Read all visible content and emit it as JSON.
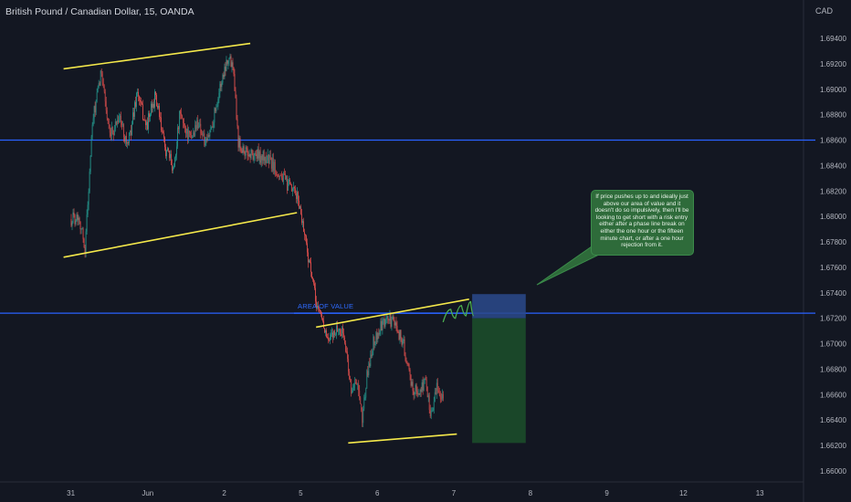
{
  "header": {
    "symbol_title": "British Pound / Canadian Dollar, 15, OANDA",
    "currency": "CAD"
  },
  "colors": {
    "background": "#131722",
    "up_candle": "#26a69a",
    "down_candle": "#ef5350",
    "trendline": "#f5e94b",
    "horizontal_level": "#2962ff",
    "risk_zone": "#2b4a8c",
    "reward_zone": "#1c4d2a",
    "projection_path": "#4caf50",
    "callout_fill": "#2e6b3a"
  },
  "annotations": {
    "area_of_value_label": "AREA OF VALUE",
    "callout_text": "If price pushes up to and ideally just above our area of value and it doesn't do so impulsively, then I'll be looking to get short with a risk entry either after a phase line break on either the one hour or the fifteen minute chart, or after a one hour rejection from it."
  },
  "chart_data": {
    "type": "candlestick",
    "title": "British Pound / Canadian Dollar, 15, OANDA",
    "y_axis_label": "CAD",
    "ylim": [
      1.6594,
      1.6952
    ],
    "y_ticks": [
      "1.69400",
      "1.69200",
      "1.69000",
      "1.68800",
      "1.68600",
      "1.68400",
      "1.68200",
      "1.68000",
      "1.67800",
      "1.67600",
      "1.67400",
      "1.67200",
      "1.67000",
      "1.66800",
      "1.66600",
      "1.66400",
      "1.66200",
      "1.66000"
    ],
    "x_ticks": [
      "31",
      "Jun",
      "2",
      "5",
      "6",
      "7",
      "8",
      "9",
      "12",
      "13"
    ],
    "grid": false,
    "price_path": [
      {
        "x": 0.0,
        "p": 1.6798
      },
      {
        "x": 0.1,
        "p": 1.6801
      },
      {
        "x": 0.18,
        "p": 1.6775
      },
      {
        "x": 0.28,
        "p": 1.6875
      },
      {
        "x": 0.4,
        "p": 1.6915
      },
      {
        "x": 0.5,
        "p": 1.686
      },
      {
        "x": 0.62,
        "p": 1.688
      },
      {
        "x": 0.74,
        "p": 1.6855
      },
      {
        "x": 0.86,
        "p": 1.6898
      },
      {
        "x": 0.98,
        "p": 1.687
      },
      {
        "x": 1.1,
        "p": 1.6895
      },
      {
        "x": 1.22,
        "p": 1.6855
      },
      {
        "x": 1.34,
        "p": 1.6838
      },
      {
        "x": 1.42,
        "p": 1.688
      },
      {
        "x": 1.56,
        "p": 1.686
      },
      {
        "x": 1.66,
        "p": 1.6875
      },
      {
        "x": 1.76,
        "p": 1.6855
      },
      {
        "x": 1.86,
        "p": 1.6878
      },
      {
        "x": 1.94,
        "p": 1.69
      },
      {
        "x": 2.04,
        "p": 1.6925
      },
      {
        "x": 2.12,
        "p": 1.692
      },
      {
        "x": 2.18,
        "p": 1.686
      },
      {
        "x": 2.28,
        "p": 1.685
      },
      {
        "x": 2.42,
        "p": 1.6848
      },
      {
        "x": 2.58,
        "p": 1.6845
      },
      {
        "x": 2.74,
        "p": 1.6832
      },
      {
        "x": 2.86,
        "p": 1.6822
      },
      {
        "x": 2.96,
        "p": 1.6815
      },
      {
        "x": 3.04,
        "p": 1.679
      },
      {
        "x": 3.12,
        "p": 1.676
      },
      {
        "x": 3.2,
        "p": 1.6732
      },
      {
        "x": 3.28,
        "p": 1.672
      },
      {
        "x": 3.36,
        "p": 1.67
      },
      {
        "x": 3.46,
        "p": 1.6712
      },
      {
        "x": 3.56,
        "p": 1.6708
      },
      {
        "x": 3.66,
        "p": 1.6665
      },
      {
        "x": 3.74,
        "p": 1.6668
      },
      {
        "x": 3.8,
        "p": 1.664
      },
      {
        "x": 3.86,
        "p": 1.6672
      },
      {
        "x": 3.94,
        "p": 1.67
      },
      {
        "x": 4.04,
        "p": 1.6712
      },
      {
        "x": 4.14,
        "p": 1.672
      },
      {
        "x": 4.24,
        "p": 1.6715
      },
      {
        "x": 4.34,
        "p": 1.67
      },
      {
        "x": 4.44,
        "p": 1.6668
      },
      {
        "x": 4.54,
        "p": 1.666
      },
      {
        "x": 4.62,
        "p": 1.6672
      },
      {
        "x": 4.7,
        "p": 1.6645
      },
      {
        "x": 4.78,
        "p": 1.6665
      },
      {
        "x": 4.86,
        "p": 1.666
      }
    ],
    "horizontal_levels": [
      1.686,
      1.6724
    ],
    "trendlines": [
      {
        "from": {
          "x": -0.1,
          "p": 1.6916
        },
        "to": {
          "x": 2.34,
          "p": 1.6936
        }
      },
      {
        "from": {
          "x": -0.1,
          "p": 1.6768
        },
        "to": {
          "x": 2.95,
          "p": 1.6803
        }
      },
      {
        "from": {
          "x": 3.2,
          "p": 1.6713
        },
        "to": {
          "x": 5.2,
          "p": 1.6735
        }
      },
      {
        "from": {
          "x": 3.62,
          "p": 1.6622
        },
        "to": {
          "x": 5.04,
          "p": 1.6629
        }
      }
    ],
    "position_tool": {
      "x_start": 5.24,
      "x_end": 5.94,
      "stop": 1.6739,
      "entry": 1.672,
      "target": 1.6622
    },
    "projection_path": [
      {
        "x": 4.86,
        "p": 1.6717
      },
      {
        "x": 4.96,
        "p": 1.6727
      },
      {
        "x": 5.02,
        "p": 1.672
      },
      {
        "x": 5.1,
        "p": 1.673
      },
      {
        "x": 5.16,
        "p": 1.6722
      },
      {
        "x": 5.22,
        "p": 1.6733
      },
      {
        "x": 5.26,
        "p": 1.6722
      }
    ]
  }
}
